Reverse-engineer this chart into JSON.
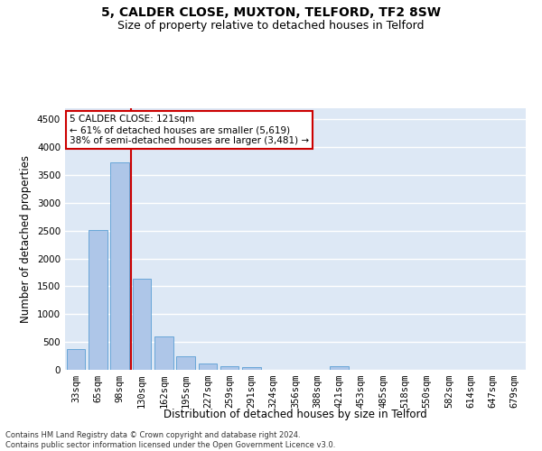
{
  "title": "5, CALDER CLOSE, MUXTON, TELFORD, TF2 8SW",
  "subtitle": "Size of property relative to detached houses in Telford",
  "xlabel": "Distribution of detached houses by size in Telford",
  "ylabel": "Number of detached properties",
  "categories": [
    "33sqm",
    "65sqm",
    "98sqm",
    "130sqm",
    "162sqm",
    "195sqm",
    "227sqm",
    "259sqm",
    "291sqm",
    "324sqm",
    "356sqm",
    "388sqm",
    "421sqm",
    "453sqm",
    "485sqm",
    "518sqm",
    "550sqm",
    "582sqm",
    "614sqm",
    "647sqm",
    "679sqm"
  ],
  "values": [
    380,
    2510,
    3730,
    1640,
    600,
    240,
    110,
    60,
    50,
    0,
    0,
    0,
    60,
    0,
    0,
    0,
    0,
    0,
    0,
    0,
    0
  ],
  "bar_color": "#aec6e8",
  "bar_edge_color": "#5a9fd4",
  "vline_color": "#cc0000",
  "annotation_text": "5 CALDER CLOSE: 121sqm\n← 61% of detached houses are smaller (5,619)\n38% of semi-detached houses are larger (3,481) →",
  "annotation_box_color": "#ffffff",
  "annotation_box_edge": "#cc0000",
  "ylim": [
    0,
    4700
  ],
  "yticks": [
    0,
    500,
    1000,
    1500,
    2000,
    2500,
    3000,
    3500,
    4000,
    4500
  ],
  "bg_color": "#dde8f5",
  "grid_color": "#ffffff",
  "footer": "Contains HM Land Registry data © Crown copyright and database right 2024.\nContains public sector information licensed under the Open Government Licence v3.0.",
  "title_fontsize": 10,
  "subtitle_fontsize": 9,
  "xlabel_fontsize": 8.5,
  "ylabel_fontsize": 8.5,
  "tick_fontsize": 7.5,
  "annotation_fontsize": 7.5,
  "footer_fontsize": 6
}
